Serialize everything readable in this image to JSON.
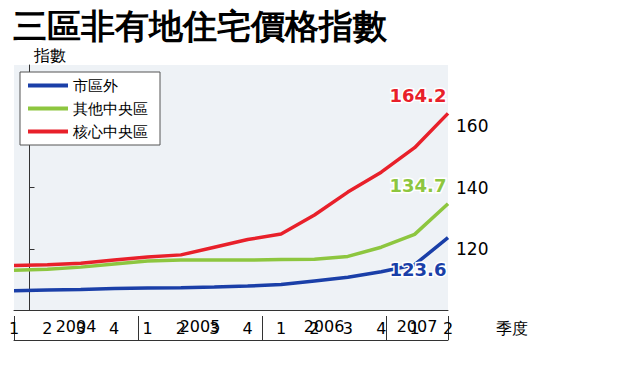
{
  "chart_data": {
    "type": "line",
    "title": "三區非有地住宅價格指數",
    "categories": [
      "1",
      "2",
      "3",
      "4",
      "1",
      "2",
      "3",
      "4",
      "1",
      "2",
      "3",
      "4",
      "1",
      "2"
    ],
    "category_groups": [
      {
        "label": "2004",
        "count": 4
      },
      {
        "label": "2005",
        "count": 4
      },
      {
        "label": "2006",
        "count": 4
      },
      {
        "label": "2007",
        "count": 2
      }
    ],
    "x_label": "季度",
    "y_label": "指數",
    "series": [
      {
        "name": "市區外",
        "color": "#1a3fa8",
        "values": [
          106.3,
          106.5,
          106.7,
          107,
          107.2,
          107.3,
          107.5,
          107.8,
          108.3,
          109.5,
          110.7,
          112.5,
          114.8,
          123.6
        ],
        "value_labels": [
          null,
          null,
          null,
          null,
          null,
          null,
          null,
          null,
          null,
          null,
          null,
          null,
          null,
          "123.6"
        ]
      },
      {
        "name": "其他中央區",
        "color": "#8dc63f",
        "values": [
          113,
          113.3,
          114,
          115,
          116,
          116.3,
          116.3,
          116.3,
          116.5,
          116.6,
          117.5,
          120.5,
          124.7,
          134.7
        ],
        "value_labels": [
          null,
          null,
          null,
          null,
          null,
          null,
          null,
          null,
          null,
          null,
          null,
          null,
          null,
          "134.7"
        ]
      },
      {
        "name": "核心中央區",
        "color": "#e8202a",
        "values": [
          114.5,
          114.8,
          115.3,
          116.3,
          117.3,
          118,
          120.5,
          123,
          124.8,
          131,
          138.5,
          145,
          153,
          164.2
        ],
        "value_labels": [
          null,
          null,
          null,
          null,
          null,
          null,
          null,
          null,
          null,
          null,
          null,
          null,
          null,
          "164.2"
        ]
      }
    ],
    "ylim": [
      100,
      180
    ],
    "yticks": [
      120,
      140,
      160
    ],
    "grid": false,
    "legend": "top-left"
  }
}
